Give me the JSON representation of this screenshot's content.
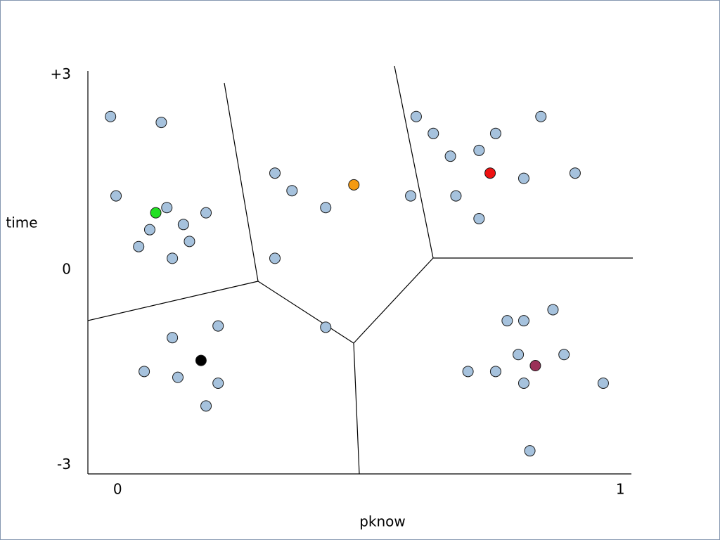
{
  "chart_data": {
    "type": "scatter",
    "x_label": "pknow",
    "y_label": "time",
    "xlim": [
      -0.059,
      1.022
    ],
    "ylim": [
      -3.135,
      3.06
    ],
    "xticks": [
      0,
      1
    ],
    "yticks": [
      {
        "value": 3,
        "label": "+3"
      },
      0,
      -3
    ],
    "series": [
      {
        "color": "#a6c2dd",
        "x": [
          -0.014,
          0.087,
          -0.003,
          0.098,
          0.064,
          0.131,
          0.176,
          0.042,
          0.143,
          0.109,
          0.313,
          0.347,
          0.414,
          0.313,
          0.414,
          0.583,
          0.594,
          0.628,
          0.662,
          0.719,
          0.752,
          0.842,
          0.808,
          0.91,
          0.673,
          0.719,
          0.109,
          0.2,
          0.053,
          0.12,
          0.2,
          0.176,
          0.775,
          0.808,
          0.866,
          0.797,
          0.888,
          0.697,
          0.752,
          0.808,
          0.966,
          0.82
        ],
        "values": [
          2.36,
          2.27,
          1.14,
          0.96,
          0.62,
          0.7,
          0.88,
          0.36,
          0.44,
          0.18,
          1.49,
          1.22,
          0.96,
          0.18,
          -0.88,
          1.14,
          2.36,
          2.1,
          1.75,
          1.84,
          2.1,
          2.36,
          1.41,
          1.49,
          1.14,
          0.79,
          -1.04,
          -0.86,
          -1.56,
          -1.65,
          -1.74,
          -2.09,
          -0.78,
          -0.78,
          -0.61,
          -1.3,
          -1.3,
          -1.56,
          -1.56,
          -1.74,
          -1.74,
          -2.78
        ]
      },
      {
        "color": "#22e022",
        "x": [
          0.076
        ],
        "values": [
          0.88
        ]
      },
      {
        "color": "#f59a12",
        "x": [
          0.47
        ],
        "values": [
          1.31
        ]
      },
      {
        "color": "#ee1111",
        "x": [
          0.741
        ],
        "values": [
          1.49
        ]
      },
      {
        "color": "#000000",
        "x": [
          0.166
        ],
        "values": [
          -1.39
        ]
      },
      {
        "color": "#9b3158",
        "x": [
          0.831
        ],
        "values": [
          -1.47
        ]
      }
    ]
  }
}
